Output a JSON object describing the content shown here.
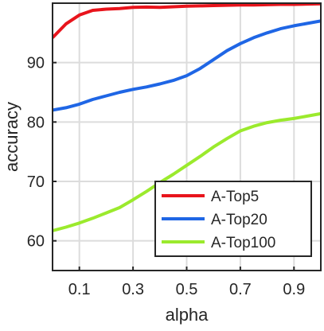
{
  "chart_data": {
    "type": "line",
    "title": "",
    "xlabel": "alpha",
    "ylabel": "accuracy",
    "xlim": [
      0.0,
      1.0
    ],
    "ylim": [
      55,
      100
    ],
    "xticks": [
      0.1,
      0.3,
      0.5,
      0.7,
      0.9
    ],
    "xtick_labels": [
      "0.1",
      "0.3",
      "0.5",
      "0.7",
      "0.9"
    ],
    "yticks": [
      60,
      70,
      80,
      90
    ],
    "ytick_labels": [
      "60",
      "70",
      "80",
      "90"
    ],
    "grid": true,
    "legend_position": "bottom-right",
    "x": [
      0.0,
      0.05,
      0.1,
      0.15,
      0.2,
      0.25,
      0.3,
      0.35,
      0.4,
      0.45,
      0.5,
      0.55,
      0.6,
      0.65,
      0.7,
      0.75,
      0.8,
      0.85,
      0.9,
      0.95,
      1.0
    ],
    "series": [
      {
        "name": "A-Top5",
        "color": "#e8141c",
        "values": [
          94.2,
          96.5,
          98.0,
          98.8,
          99.0,
          99.1,
          99.3,
          99.35,
          99.3,
          99.4,
          99.5,
          99.55,
          99.6,
          99.65,
          99.7,
          99.7,
          99.75,
          99.8,
          99.8,
          99.85,
          99.9
        ]
      },
      {
        "name": "A-Top20",
        "color": "#1f66e5",
        "values": [
          82.0,
          82.4,
          83.0,
          83.8,
          84.4,
          85.0,
          85.5,
          85.9,
          86.4,
          87.0,
          87.8,
          89.0,
          90.5,
          92.0,
          93.2,
          94.2,
          95.0,
          95.7,
          96.2,
          96.6,
          97.0
        ]
      },
      {
        "name": "A-Top100",
        "color": "#9bea2d",
        "values": [
          61.7,
          62.3,
          63.0,
          63.8,
          64.7,
          65.6,
          66.9,
          68.3,
          69.8,
          71.2,
          72.7,
          74.2,
          75.8,
          77.2,
          78.5,
          79.3,
          79.9,
          80.3,
          80.6,
          81.0,
          81.4
        ]
      }
    ]
  }
}
